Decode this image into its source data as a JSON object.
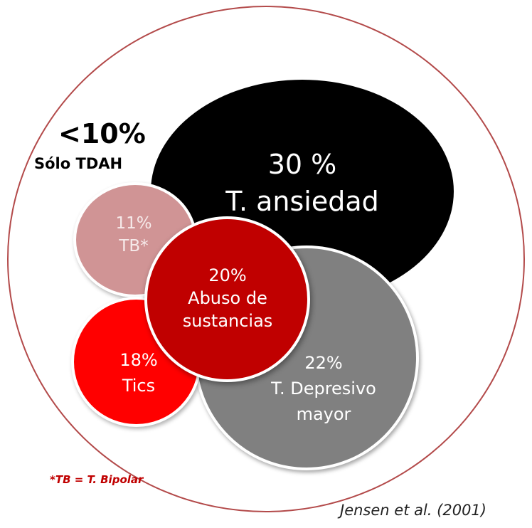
{
  "circles": {
    "anxiety": {
      "pct": "30 %",
      "label": "T. ansiedad",
      "color": "#000000"
    },
    "bipolar": {
      "pct": "11%",
      "label": "TB*",
      "color": "#d09495"
    },
    "substance": {
      "pct": "20%",
      "label_line1": "Abuso de",
      "label_line2": "sustancias",
      "color": "#c00000"
    },
    "tics": {
      "pct": "18%",
      "label": "Tics",
      "color": "#ff0000"
    },
    "depression": {
      "pct": "22%",
      "label_line1": "T. Depresivo",
      "label_line2": "mayor",
      "color": "#808080"
    }
  },
  "only_adhd": {
    "pct": "<10%",
    "label": "Sólo TDAH"
  },
  "footnote": "*TB = T. Bipolar",
  "citation": "Jensen et al. (2001)",
  "colors": {
    "outer_border": "#b34a4a",
    "footnote": "#c00000"
  }
}
